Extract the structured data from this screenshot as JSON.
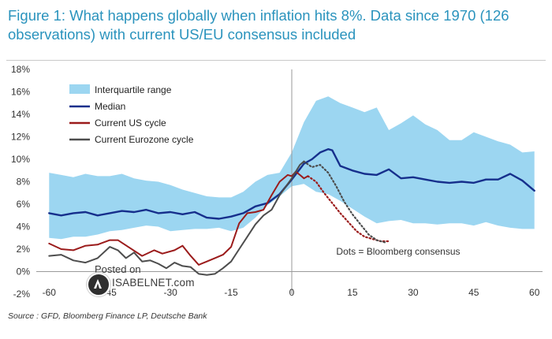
{
  "title": "Figure 1: What happens globally when inflation hits 8%. Data since 1970 (126 observations) with current US/EU consensus included",
  "source": "Source : GFD, Bloomberg Finance LP, Deutsche Bank",
  "watermark": {
    "posted": "Posted on",
    "site": "ISABELNET.com"
  },
  "chart_data": {
    "type": "line",
    "title": "Figure 1: What happens globally when inflation hits 8%. Data since 1970 (126 observations) with current US/EU consensus included",
    "xlabel": "",
    "ylabel": "",
    "xlim": [
      -62,
      62
    ],
    "ylim": [
      -2,
      18
    ],
    "x_ticks": [
      -60,
      -45,
      -30,
      -15,
      0,
      15,
      30,
      45,
      60
    ],
    "x_tick_labels": [
      "-60",
      "-45",
      "-30",
      "-15",
      "0",
      "15",
      "30",
      "45",
      "60"
    ],
    "y_ticks": [
      -2,
      0,
      2,
      4,
      6,
      8,
      10,
      12,
      14,
      16,
      18
    ],
    "y_tick_labels": [
      "-2%",
      "0%",
      "2%",
      "4%",
      "6%",
      "8%",
      "10%",
      "12%",
      "14%",
      "16%",
      "18%"
    ],
    "grid": false,
    "legend_position": "top-left",
    "vertical_marker_x": 0,
    "annotations": [
      {
        "text": "Dots = Bloomberg consensus",
        "x": 11,
        "y": 1.8
      }
    ],
    "colors": {
      "band": "#9cd6f1",
      "median": "#162f8c",
      "us": "#9b1b1b",
      "eurozone": "#4d4d4d",
      "axis": "#9a9a9a",
      "title": "#2a93bd"
    },
    "band": {
      "name": "Interquartile range",
      "x": [
        -60,
        -57,
        -54,
        -51,
        -48,
        -45,
        -42,
        -39,
        -36,
        -33,
        -30,
        -27,
        -24,
        -21,
        -18,
        -15,
        -12,
        -9,
        -6,
        -3,
        0,
        3,
        6,
        9,
        12,
        15,
        18,
        21,
        24,
        27,
        30,
        33,
        36,
        39,
        42,
        45,
        48,
        51,
        54,
        57,
        60
      ],
      "upper": [
        8.8,
        8.6,
        8.4,
        8.7,
        8.5,
        8.5,
        8.7,
        8.3,
        8.1,
        8.0,
        7.7,
        7.3,
        7.0,
        6.7,
        6.6,
        6.6,
        7.1,
        8.0,
        8.6,
        8.8,
        10.6,
        13.3,
        15.2,
        15.6,
        15.0,
        14.6,
        14.2,
        14.6,
        12.6,
        13.2,
        13.9,
        13.1,
        12.6,
        11.7,
        11.7,
        12.4,
        12.0,
        11.6,
        11.3,
        10.6,
        10.7
      ],
      "lower": [
        3.0,
        2.9,
        3.1,
        3.1,
        3.3,
        3.6,
        3.7,
        3.9,
        4.1,
        4.0,
        3.6,
        3.7,
        3.8,
        3.8,
        3.9,
        3.6,
        3.9,
        4.8,
        5.9,
        6.7,
        7.6,
        7.8,
        7.1,
        6.9,
        6.3,
        5.6,
        4.9,
        4.3,
        4.5,
        4.6,
        4.3,
        4.3,
        4.2,
        4.3,
        4.3,
        4.1,
        4.4,
        4.1,
        3.9,
        3.8,
        3.8
      ]
    },
    "series": [
      {
        "name": "Median",
        "x": [
          -60,
          -57,
          -54,
          -51,
          -48,
          -45,
          -42,
          -39,
          -36,
          -33,
          -30,
          -27,
          -24,
          -21,
          -18,
          -15,
          -12,
          -9,
          -6,
          -3,
          0,
          3,
          5,
          7,
          9,
          10,
          12,
          15,
          18,
          21,
          24,
          27,
          30,
          33,
          36,
          39,
          42,
          45,
          48,
          51,
          54,
          57,
          60
        ],
        "y": [
          5.2,
          5.0,
          5.2,
          5.3,
          5.0,
          5.2,
          5.4,
          5.3,
          5.5,
          5.2,
          5.3,
          5.1,
          5.3,
          4.8,
          4.7,
          4.9,
          5.2,
          5.8,
          6.1,
          6.9,
          8.2,
          9.6,
          10.0,
          10.6,
          10.9,
          10.8,
          9.4,
          9.0,
          8.7,
          8.6,
          9.1,
          8.3,
          8.4,
          8.2,
          8.0,
          7.9,
          8.0,
          7.9,
          8.2,
          8.2,
          8.7,
          8.1,
          7.2
        ]
      },
      {
        "name": "Current US cycle",
        "x": [
          -60,
          -57,
          -54,
          -51,
          -48,
          -45,
          -43,
          -40,
          -37,
          -34,
          -32,
          -29,
          -27,
          -25,
          -23,
          -21,
          -19,
          -17,
          -15,
          -13,
          -11,
          -9,
          -7,
          -5,
          -3,
          -1,
          0,
          1,
          2,
          3,
          4
        ],
        "y": [
          2.5,
          2.0,
          1.9,
          2.3,
          2.4,
          2.8,
          2.8,
          2.1,
          1.4,
          1.9,
          1.6,
          1.9,
          2.3,
          1.4,
          0.6,
          0.9,
          1.2,
          1.5,
          2.2,
          4.3,
          5.2,
          5.3,
          5.5,
          6.8,
          8.0,
          8.6,
          8.5,
          8.9,
          8.6,
          8.3,
          8.5
        ]
      },
      {
        "name": "Current Eurozone cycle",
        "x": [
          -60,
          -57,
          -54,
          -51,
          -48,
          -45,
          -43,
          -41,
          -39,
          -37,
          -35,
          -33,
          -31,
          -29,
          -27,
          -25,
          -23,
          -21,
          -19,
          -17,
          -15,
          -13,
          -11,
          -9,
          -7,
          -5,
          -3,
          -1,
          0,
          1,
          2,
          3
        ],
        "y": [
          1.4,
          1.5,
          1.0,
          0.8,
          1.2,
          2.2,
          1.9,
          1.2,
          1.7,
          0.9,
          1.0,
          0.7,
          0.3,
          0.8,
          0.5,
          0.4,
          -0.2,
          -0.3,
          -0.2,
          0.3,
          0.9,
          2.0,
          3.1,
          4.2,
          5.0,
          5.5,
          6.8,
          7.8,
          8.3,
          8.9,
          9.5,
          9.8
        ]
      }
    ],
    "consensus": [
      {
        "name": "Bloomberg consensus (US)",
        "x": [
          4,
          6,
          8,
          10,
          12,
          14,
          16,
          18,
          20,
          22,
          24
        ],
        "y": [
          8.5,
          8.0,
          7.0,
          6.1,
          5.2,
          4.4,
          3.6,
          3.1,
          2.9,
          2.7,
          2.7
        ]
      },
      {
        "name": "Bloomberg consensus (Eurozone)",
        "x": [
          3,
          5,
          7,
          9,
          11,
          13,
          15,
          17,
          19,
          21,
          23
        ],
        "y": [
          9.8,
          9.3,
          9.5,
          8.8,
          7.6,
          6.2,
          5.1,
          4.2,
          3.3,
          2.8,
          2.6
        ]
      }
    ]
  }
}
